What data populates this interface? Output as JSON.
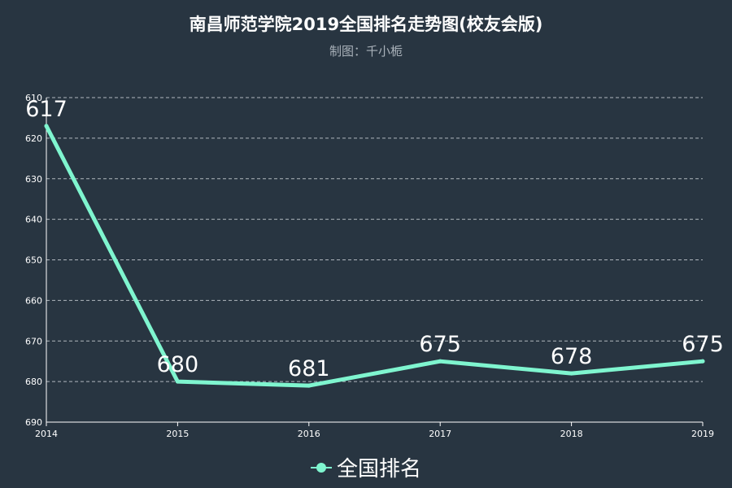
{
  "title": "南昌师范学院2019全国排名走势图(校友会版)",
  "subtitle": "制图：千小栀",
  "colors": {
    "background": "#283541",
    "series": "#7ff5cf",
    "grid": "#c8ced4",
    "axis": "#ffffff",
    "text": "#ffffff"
  },
  "chart_data": {
    "type": "line",
    "x": [
      "2014",
      "2015",
      "2016",
      "2017",
      "2018",
      "2019"
    ],
    "series": [
      {
        "name": "全国排名",
        "values": [
          617,
          680,
          681,
          675,
          678,
          675
        ]
      }
    ],
    "y_ticks": [
      610,
      620,
      630,
      640,
      650,
      660,
      670,
      680,
      690
    ],
    "ylim": [
      610,
      690
    ],
    "y_inverted": true,
    "grid": true,
    "legend_position": "bottom-center",
    "data_labels": true
  }
}
